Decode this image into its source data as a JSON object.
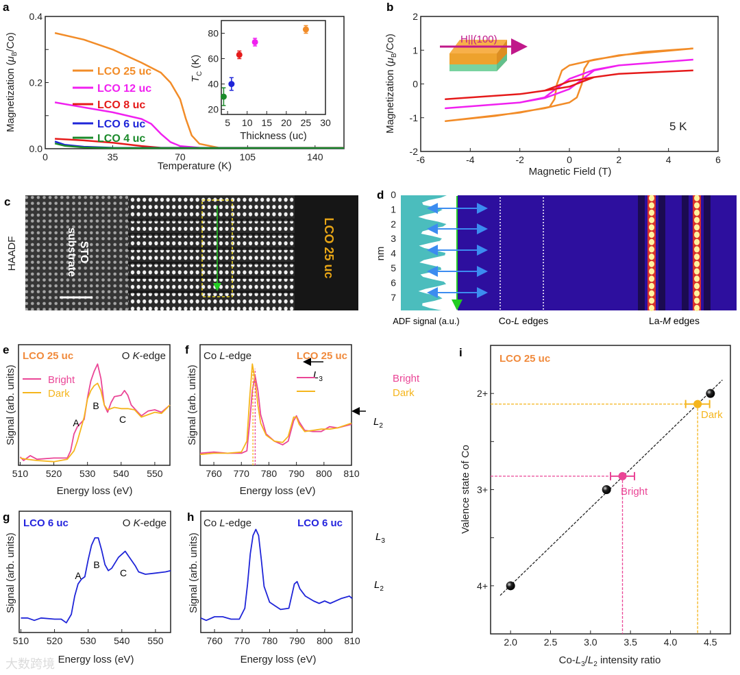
{
  "colors": {
    "orange": "#f28c28",
    "magenta": "#f020f0",
    "red": "#e51a1a",
    "blue": "#1e24d8",
    "green": "#1a8a2a",
    "bright": "#ea4596",
    "dark": "#f5b51c",
    "lco25": "#f08a3c",
    "lco6": "#2424dd"
  },
  "panels": {
    "a": {
      "letter": "a",
      "ylabel_pre": "Magnetization (",
      "ylabel_mu": "μ",
      "ylabel_sub": "B",
      "ylabel_post": "/Co)",
      "xlabel": "Temperature (K)",
      "legend": [
        "LCO 25 uc",
        "LCO 12 uc",
        "LCO 8 uc",
        "LCO 6 uc",
        "LCO 4 uc"
      ],
      "inset_ylabel": "T",
      "inset_ylabel_sub": "C",
      "inset_ylabel_post": " (K)",
      "inset_xlabel": "Thickness (uc)"
    },
    "b": {
      "letter": "b",
      "ylabel_pre": "Magnetization (",
      "ylabel_mu": "μ",
      "ylabel_sub": "B",
      "ylabel_post": "/Co)",
      "xlabel": "Magnetic Field (T)",
      "field_label": "H||(100)",
      "temp_label": "5 K"
    },
    "c": {
      "letter": "c",
      "haadf": "HAADF",
      "substrate_1": "STO",
      "substrate_2": "substrate",
      "film": "LCO 25 uc"
    },
    "d": {
      "letter": "d",
      "ylabel": "nm",
      "yticks": [
        "0",
        "1",
        "2",
        "3",
        "4",
        "5",
        "6",
        "7"
      ],
      "label_adf": "ADF signal (a.u.)",
      "label_col_pre": "Co-",
      "label_col_it": "L",
      "label_col_post": " edges",
      "label_lam_pre": "La-",
      "label_lam_it": "M",
      "label_lam_post": " edges"
    },
    "e": {
      "letter": "e",
      "sample": "LCO 25 uc",
      "edge_pre": "O ",
      "edge_it": "K",
      "edge_post": "-edge",
      "ylabel": "Signal (arb. units)",
      "xlabel": "Energy loss (eV)",
      "legend": [
        "Bright",
        "Dark"
      ],
      "peaks": [
        "A",
        "B",
        "C"
      ]
    },
    "f": {
      "letter": "f",
      "sample": "LCO 25 uc",
      "edge_pre": "Co ",
      "edge_it": "L",
      "edge_post": "-edge",
      "ylabel": "Signal (arb. units)",
      "xlabel": "Energy loss (eV)",
      "legend": [
        "Bright",
        "Dark"
      ],
      "peak_l3": "L",
      "peak_l3_sub": "3",
      "peak_l2": "L",
      "peak_l2_sub": "2"
    },
    "g": {
      "letter": "g",
      "sample": "LCO 6 uc",
      "edge_pre": "O ",
      "edge_it": "K",
      "edge_post": "-edge",
      "ylabel": "Signal (arb. units)",
      "xlabel": "Energy loss (eV)",
      "peaks": [
        "A",
        "B",
        "C"
      ]
    },
    "h": {
      "letter": "h",
      "sample": "LCO 6 uc",
      "edge_pre": "Co ",
      "edge_it": "L",
      "edge_post": "-edge",
      "ylabel": "Signal (arb. units)",
      "xlabel": "Energy loss (eV)",
      "peak_l3": "L",
      "peak_l3_sub": "3",
      "peak_l2": "L",
      "peak_l2_sub": "2"
    },
    "i": {
      "letter": "i",
      "sample": "LCO 25 uc",
      "ylabel": "Valence state of Co",
      "xlabel_pre": "Co-",
      "xlabel_l3": "L",
      "xlabel_3": "3",
      "xlabel_mid": "/",
      "xlabel_l2": "L",
      "xlabel_2": "2",
      "xlabel_post": " intensity ratio",
      "bright_label": "Bright",
      "dark_label": "Dark"
    }
  },
  "watermark": "大数跨境",
  "chart_data": [
    {
      "id": "a",
      "type": "line",
      "title": "",
      "xlabel": "Temperature (K)",
      "ylabel": "Magnetization (μB/Co)",
      "xlim": [
        0,
        155
      ],
      "ylim": [
        0,
        0.4
      ],
      "xticks": [
        0,
        35,
        70,
        105,
        140
      ],
      "xtick_labels": [
        "0",
        "35",
        "70",
        "105",
        "140"
      ],
      "yticks": [
        0,
        0.1,
        0.2,
        0.3,
        0.4
      ],
      "ytick_labels": [
        "0.0",
        "",
        "0.2",
        "",
        "0.4"
      ],
      "legend_position": "left",
      "series": [
        {
          "name": "LCO 25 uc",
          "color": "orange",
          "x": [
            5,
            20,
            35,
            50,
            60,
            65,
            70,
            73,
            76,
            80,
            90,
            155
          ],
          "y": [
            0.35,
            0.33,
            0.3,
            0.26,
            0.23,
            0.2,
            0.15,
            0.09,
            0.04,
            0.015,
            0.003,
            0.003
          ]
        },
        {
          "name": "LCO 12 uc",
          "color": "magenta",
          "x": [
            5,
            20,
            35,
            50,
            55,
            60,
            65,
            70,
            80,
            155
          ],
          "y": [
            0.14,
            0.125,
            0.11,
            0.09,
            0.075,
            0.045,
            0.02,
            0.008,
            0.003,
            0.002
          ]
        },
        {
          "name": "LCO 8 uc",
          "color": "red",
          "x": [
            5,
            20,
            35,
            50,
            60,
            155
          ],
          "y": [
            0.03,
            0.025,
            0.018,
            0.008,
            0.003,
            0.002
          ]
        },
        {
          "name": "LCO 6 uc",
          "color": "blue",
          "x": [
            5,
            10,
            20,
            35,
            155
          ],
          "y": [
            0.022,
            0.012,
            0.006,
            0.003,
            0.002
          ]
        },
        {
          "name": "LCO 4 uc",
          "color": "green",
          "x": [
            5,
            10,
            20,
            35,
            155
          ],
          "y": [
            0.016,
            0.009,
            0.004,
            0.002,
            0.002
          ]
        }
      ]
    },
    {
      "id": "a_inset",
      "type": "scatter",
      "xlabel": "Thickness (uc)",
      "ylabel": "TC (K)",
      "xlim": [
        3.4,
        30
      ],
      "ylim": [
        16,
        90
      ],
      "xticks": [
        5,
        10,
        15,
        20,
        25,
        30
      ],
      "xtick_labels": [
        "5",
        "10",
        "15",
        "20",
        "25",
        "30"
      ],
      "yticks": [
        20,
        40,
        60,
        80
      ],
      "ytick_labels": [
        "20",
        "40",
        "60",
        "80"
      ],
      "points": [
        {
          "x": 4,
          "y": 30,
          "err": 7,
          "color": "green"
        },
        {
          "x": 6,
          "y": 40,
          "err": 5,
          "color": "blue"
        },
        {
          "x": 8,
          "y": 63,
          "err": 3,
          "color": "red"
        },
        {
          "x": 12,
          "y": 73,
          "err": 3,
          "color": "magenta"
        },
        {
          "x": 25,
          "y": 83,
          "err": 3,
          "color": "orange"
        }
      ]
    },
    {
      "id": "b",
      "type": "line",
      "xlabel": "Magnetic Field (T)",
      "ylabel": "Magnetization (μB/Co)",
      "xlim": [
        -6,
        6
      ],
      "ylim": [
        -2,
        2
      ],
      "xticks": [
        -6,
        -4,
        -2,
        0,
        2,
        4,
        6
      ],
      "xtick_labels": [
        "-6",
        "-4",
        "-2",
        "0",
        "2",
        "4",
        "6"
      ],
      "yticks": [
        -2,
        -1,
        0,
        1,
        2
      ],
      "ytick_labels": [
        "-2",
        "-1",
        "0",
        "1",
        "2"
      ],
      "series": [
        {
          "name": "LCO 25 uc",
          "color": "orange",
          "x": [
            5,
            3,
            1,
            0.6,
            0,
            -0.3,
            -0.5,
            -0.6,
            -0.8,
            -2,
            -5,
            -3,
            -1,
            -0.6,
            0,
            0.3,
            0.5,
            0.6,
            0.8,
            2,
            5
          ],
          "y": [
            1.05,
            0.95,
            0.72,
            0.65,
            0.55,
            0.4,
            0,
            -0.45,
            -0.68,
            -0.85,
            -1.1,
            -0.95,
            -0.72,
            -0.65,
            -0.55,
            -0.4,
            0,
            0.45,
            0.68,
            0.85,
            1.05
          ]
        },
        {
          "name": "LCO 12 uc",
          "color": "magenta",
          "x": [
            5,
            2,
            1,
            0,
            -1,
            -2,
            -5,
            -2,
            -1,
            0,
            1,
            2,
            5
          ],
          "y": [
            0.72,
            0.55,
            0.42,
            0.15,
            -0.4,
            -0.55,
            -0.72,
            -0.55,
            -0.42,
            -0.15,
            0.4,
            0.55,
            0.72
          ]
        },
        {
          "name": "LCO 8 uc",
          "color": "red",
          "x": [
            5,
            2,
            1,
            0,
            -1,
            -2,
            -5,
            -2,
            -1,
            0,
            1,
            2,
            5
          ],
          "y": [
            0.4,
            0.3,
            0.2,
            0.08,
            -0.2,
            -0.3,
            -0.45,
            -0.3,
            -0.2,
            -0.08,
            0.2,
            0.3,
            0.4
          ]
        }
      ]
    },
    {
      "id": "e",
      "type": "line",
      "xlabel": "Energy loss (eV)",
      "ylabel": "Signal (arb. units)",
      "xlim": [
        509.5,
        554.5
      ],
      "ylim": [
        0,
        1
      ],
      "xticks": [
        510,
        520,
        530,
        540,
        550
      ],
      "xtick_labels": [
        "510",
        "520",
        "530",
        "540",
        "550"
      ],
      "yticks": [],
      "ytick_labels": [],
      "series": [
        {
          "name": "Bright",
          "color": "bright",
          "x": [
            510,
            511,
            513,
            515,
            520,
            524,
            525,
            526,
            527,
            528,
            529,
            530,
            531,
            532,
            533,
            534,
            535,
            536,
            537,
            538,
            540,
            541,
            542,
            543,
            545,
            546,
            548,
            550,
            552,
            554.5
          ],
          "y": [
            0.07,
            0.04,
            0.08,
            0.05,
            0.06,
            0.06,
            0.12,
            0.26,
            0.32,
            0.35,
            0.38,
            0.56,
            0.7,
            0.78,
            0.84,
            0.72,
            0.5,
            0.44,
            0.52,
            0.57,
            0.58,
            0.62,
            0.58,
            0.5,
            0.44,
            0.41,
            0.45,
            0.46,
            0.44,
            0.5
          ]
        },
        {
          "name": "Dark",
          "color": "dark",
          "x": [
            510,
            512,
            515,
            520,
            524,
            526,
            527,
            528,
            529,
            530,
            531,
            532,
            533,
            534,
            535,
            536,
            538,
            540,
            542,
            544,
            546,
            548,
            550,
            552,
            554.5
          ],
          "y": [
            0.06,
            0.05,
            0.04,
            0.03,
            0.05,
            0.12,
            0.2,
            0.3,
            0.4,
            0.55,
            0.62,
            0.66,
            0.68,
            0.62,
            0.5,
            0.46,
            0.48,
            0.47,
            0.47,
            0.46,
            0.4,
            0.42,
            0.44,
            0.43,
            0.5
          ]
        }
      ]
    },
    {
      "id": "f",
      "type": "line",
      "xlabel": "Energy loss (eV)",
      "ylabel": "Signal (arb. units)",
      "xlim": [
        755,
        810
      ],
      "ylim": [
        0,
        1
      ],
      "xticks": [
        760,
        770,
        780,
        790,
        800,
        810
      ],
      "xtick_labels": [
        "760",
        "770",
        "780",
        "790",
        "800",
        "810"
      ],
      "yticks": [],
      "ytick_labels": [],
      "series": [
        {
          "name": "Bright",
          "color": "bright",
          "x": [
            755,
            760,
            765,
            770,
            772,
            773,
            774,
            775,
            776,
            777,
            779,
            782,
            785,
            787,
            789,
            790,
            791,
            793,
            796,
            799,
            802,
            805,
            810
          ],
          "y": [
            0.1,
            0.11,
            0.1,
            0.1,
            0.12,
            0.35,
            0.62,
            0.74,
            0.62,
            0.42,
            0.26,
            0.2,
            0.17,
            0.2,
            0.37,
            0.41,
            0.36,
            0.29,
            0.28,
            0.28,
            0.32,
            0.31,
            0.34
          ]
        },
        {
          "name": "Dark",
          "color": "dark",
          "x": [
            755,
            760,
            765,
            770,
            772,
            773,
            774,
            775,
            776,
            777,
            779,
            782,
            785,
            787,
            789,
            790,
            791,
            793,
            796,
            799,
            802,
            805,
            810
          ],
          "y": [
            0.09,
            0.1,
            0.1,
            0.11,
            0.2,
            0.55,
            0.84,
            0.7,
            0.5,
            0.35,
            0.25,
            0.2,
            0.19,
            0.24,
            0.4,
            0.4,
            0.34,
            0.28,
            0.29,
            0.3,
            0.3,
            0.31,
            0.35
          ]
        }
      ],
      "markers": [
        {
          "x": 774.2,
          "color": "dark"
        },
        {
          "x": 775.0,
          "color": "bright"
        }
      ]
    },
    {
      "id": "g",
      "type": "line",
      "xlabel": "Energy loss (eV)",
      "ylabel": "Signal (arb. units)",
      "xlim": [
        509.5,
        554.5
      ],
      "ylim": [
        0,
        1
      ],
      "xticks": [
        510,
        520,
        530,
        540,
        550
      ],
      "xtick_labels": [
        "510",
        "520",
        "530",
        "540",
        "550"
      ],
      "yticks": [],
      "ytick_labels": [],
      "series": [
        {
          "name": "LCO 6 uc",
          "color": "blue",
          "x": [
            510,
            512,
            514,
            516,
            520,
            522,
            523.5,
            525,
            526,
            527,
            528,
            529,
            530,
            531,
            532,
            533,
            534,
            535,
            536,
            537,
            539,
            541,
            542,
            544,
            545,
            547,
            550,
            553,
            554.5
          ],
          "y": [
            0.12,
            0.12,
            0.1,
            0.12,
            0.11,
            0.11,
            0.08,
            0.15,
            0.3,
            0.4,
            0.44,
            0.46,
            0.6,
            0.72,
            0.78,
            0.78,
            0.68,
            0.56,
            0.51,
            0.53,
            0.62,
            0.67,
            0.63,
            0.55,
            0.5,
            0.48,
            0.49,
            0.5,
            0.51
          ]
        }
      ]
    },
    {
      "id": "h",
      "type": "line",
      "xlabel": "Energy loss (eV)",
      "ylabel": "Signal (arb. units)",
      "xlim": [
        755,
        810
      ],
      "ylim": [
        0,
        1
      ],
      "xticks": [
        760,
        770,
        780,
        790,
        800,
        810
      ],
      "xtick_labels": [
        "760",
        "770",
        "780",
        "790",
        "800",
        "810"
      ],
      "yticks": [],
      "ytick_labels": [],
      "series": [
        {
          "name": "LCO 6 uc",
          "color": "blue",
          "x": [
            755,
            757,
            760,
            763,
            766,
            769,
            771,
            772,
            773,
            774,
            775,
            776,
            777,
            778,
            780,
            782,
            784,
            787,
            788,
            789,
            790,
            791,
            793,
            796,
            798,
            800,
            802,
            806,
            809,
            810
          ],
          "y": [
            0.12,
            0.1,
            0.13,
            0.13,
            0.11,
            0.11,
            0.2,
            0.4,
            0.65,
            0.8,
            0.85,
            0.8,
            0.6,
            0.38,
            0.25,
            0.22,
            0.19,
            0.2,
            0.3,
            0.4,
            0.42,
            0.36,
            0.3,
            0.26,
            0.24,
            0.26,
            0.24,
            0.28,
            0.3,
            0.28
          ]
        }
      ]
    },
    {
      "id": "i",
      "type": "scatter",
      "xlabel": "Co-L3/L2 intensity ratio",
      "ylabel": "Valence state of Co",
      "xlim": [
        1.75,
        4.75
      ],
      "ylim": [
        1.5,
        4.5
      ],
      "y_inverted": true,
      "xticks": [
        2.0,
        2.5,
        3.0,
        3.5,
        4.0,
        4.5
      ],
      "xtick_labels": [
        "2.0",
        "2.5",
        "3.0",
        "3.5",
        "4.0",
        "4.5"
      ],
      "yticks": [
        2,
        2.5,
        3,
        3.5,
        4
      ],
      "ytick_labels": [
        "2+",
        "",
        "3+",
        "",
        "4+"
      ],
      "reference_points": [
        {
          "x": 2.0,
          "y": 4
        },
        {
          "x": 3.2,
          "y": 3
        },
        {
          "x": 4.5,
          "y": 2
        }
      ],
      "fit_line": {
        "x": [
          1.87,
          4.65
        ],
        "y": [
          4.1,
          1.86
        ]
      },
      "measured": [
        {
          "name": "Bright",
          "x": 3.4,
          "y": 2.86,
          "xerr": 0.15,
          "color": "bright"
        },
        {
          "name": "Dark",
          "x": 4.34,
          "y": 2.11,
          "xerr": 0.15,
          "color": "dark"
        }
      ]
    }
  ]
}
